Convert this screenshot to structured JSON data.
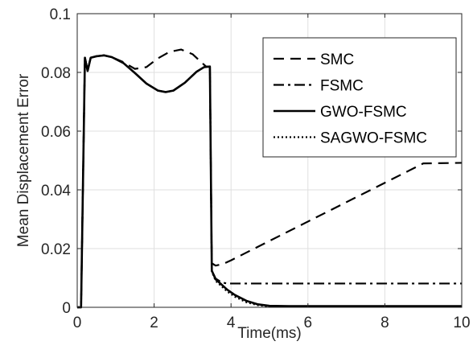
{
  "chart_data": {
    "type": "line",
    "xlabel": "Time(ms)",
    "ylabel": "Mean Displacement Error",
    "xlim": [
      0,
      10
    ],
    "ylim": [
      0,
      0.1
    ],
    "xticks": [
      0,
      2,
      4,
      6,
      8,
      10
    ],
    "xtick_labels": [
      "0",
      "2",
      "4",
      "6",
      "8",
      "10"
    ],
    "yticks": [
      0,
      0.02,
      0.04,
      0.06,
      0.08,
      0.1
    ],
    "ytick_labels": [
      "0",
      "0.02",
      "0.04",
      "0.06",
      "0.08",
      "0.1"
    ],
    "grid": true,
    "legend_position": "top-right",
    "series": [
      {
        "name": "SMC",
        "style": "dashed",
        "x": [
          0,
          0.1,
          0.2,
          0.27,
          0.35,
          0.5,
          0.7,
          0.9,
          1.2,
          1.5,
          1.8,
          2.1,
          2.4,
          2.7,
          3.0,
          3.2,
          3.35,
          3.45,
          3.5,
          3.6,
          3.8,
          4,
          5,
          6,
          7,
          8,
          9,
          10
        ],
        "y": [
          0,
          0,
          0.085,
          0.0805,
          0.085,
          0.0855,
          0.0858,
          0.0852,
          0.0835,
          0.0812,
          0.0818,
          0.0848,
          0.087,
          0.0878,
          0.0862,
          0.0838,
          0.082,
          0.082,
          0.015,
          0.0142,
          0.0148,
          0.016,
          0.0226,
          0.0292,
          0.0358,
          0.0424,
          0.049,
          0.0492
        ]
      },
      {
        "name": "FSMC",
        "style": "dashdot",
        "x": [
          0,
          0.1,
          0.2,
          0.27,
          0.35,
          0.5,
          0.7,
          0.9,
          1.2,
          1.5,
          1.8,
          2.1,
          2.3,
          2.5,
          2.8,
          3.1,
          3.3,
          3.45,
          3.5,
          3.6,
          3.75,
          3.9,
          4.1,
          5,
          6,
          7,
          8,
          9,
          10
        ],
        "y": [
          0,
          0,
          0.085,
          0.0805,
          0.085,
          0.0855,
          0.0858,
          0.0852,
          0.0832,
          0.0798,
          0.0762,
          0.0738,
          0.0733,
          0.0738,
          0.0765,
          0.0802,
          0.0818,
          0.082,
          0.0125,
          0.0098,
          0.0085,
          0.0081,
          0.0081,
          0.0081,
          0.0081,
          0.0081,
          0.0081,
          0.0081,
          0.0081
        ]
      },
      {
        "name": "GWO-FSMC",
        "style": "solid",
        "x": [
          0,
          0.1,
          0.2,
          0.27,
          0.35,
          0.5,
          0.7,
          0.9,
          1.2,
          1.5,
          1.8,
          2.1,
          2.3,
          2.5,
          2.8,
          3.1,
          3.3,
          3.45,
          3.5,
          3.6,
          3.75,
          3.9,
          4.1,
          4.4,
          4.7,
          5.0,
          5.5,
          6,
          7,
          8,
          9,
          10
        ],
        "y": [
          0,
          0,
          0.085,
          0.0805,
          0.085,
          0.0855,
          0.0858,
          0.0852,
          0.0832,
          0.0798,
          0.0762,
          0.0738,
          0.0733,
          0.0738,
          0.0765,
          0.0802,
          0.0818,
          0.082,
          0.0125,
          0.0095,
          0.0078,
          0.006,
          0.0042,
          0.0022,
          0.001,
          0.0005,
          0.0004,
          0.0004,
          0.0004,
          0.0004,
          0.0004,
          0.0004
        ]
      },
      {
        "name": "SAGWO-FSMC",
        "style": "dotted",
        "x": [
          0,
          0.1,
          0.2,
          0.27,
          0.35,
          0.5,
          0.7,
          0.9,
          1.2,
          1.5,
          1.8,
          2.1,
          2.3,
          2.5,
          2.8,
          3.1,
          3.3,
          3.45,
          3.5,
          3.6,
          3.75,
          3.9,
          4.1,
          4.4,
          4.7,
          5.0,
          5.5,
          6,
          7,
          8,
          9,
          10
        ],
        "y": [
          0,
          0,
          0.085,
          0.0805,
          0.085,
          0.0855,
          0.0858,
          0.0852,
          0.0832,
          0.0798,
          0.0762,
          0.0738,
          0.0733,
          0.0738,
          0.0765,
          0.0802,
          0.0818,
          0.082,
          0.0122,
          0.009,
          0.0072,
          0.0054,
          0.0036,
          0.0017,
          0.0007,
          0.0003,
          0.0002,
          0.0002,
          0.0002,
          0.0002,
          0.0002,
          0.0002
        ]
      }
    ]
  }
}
